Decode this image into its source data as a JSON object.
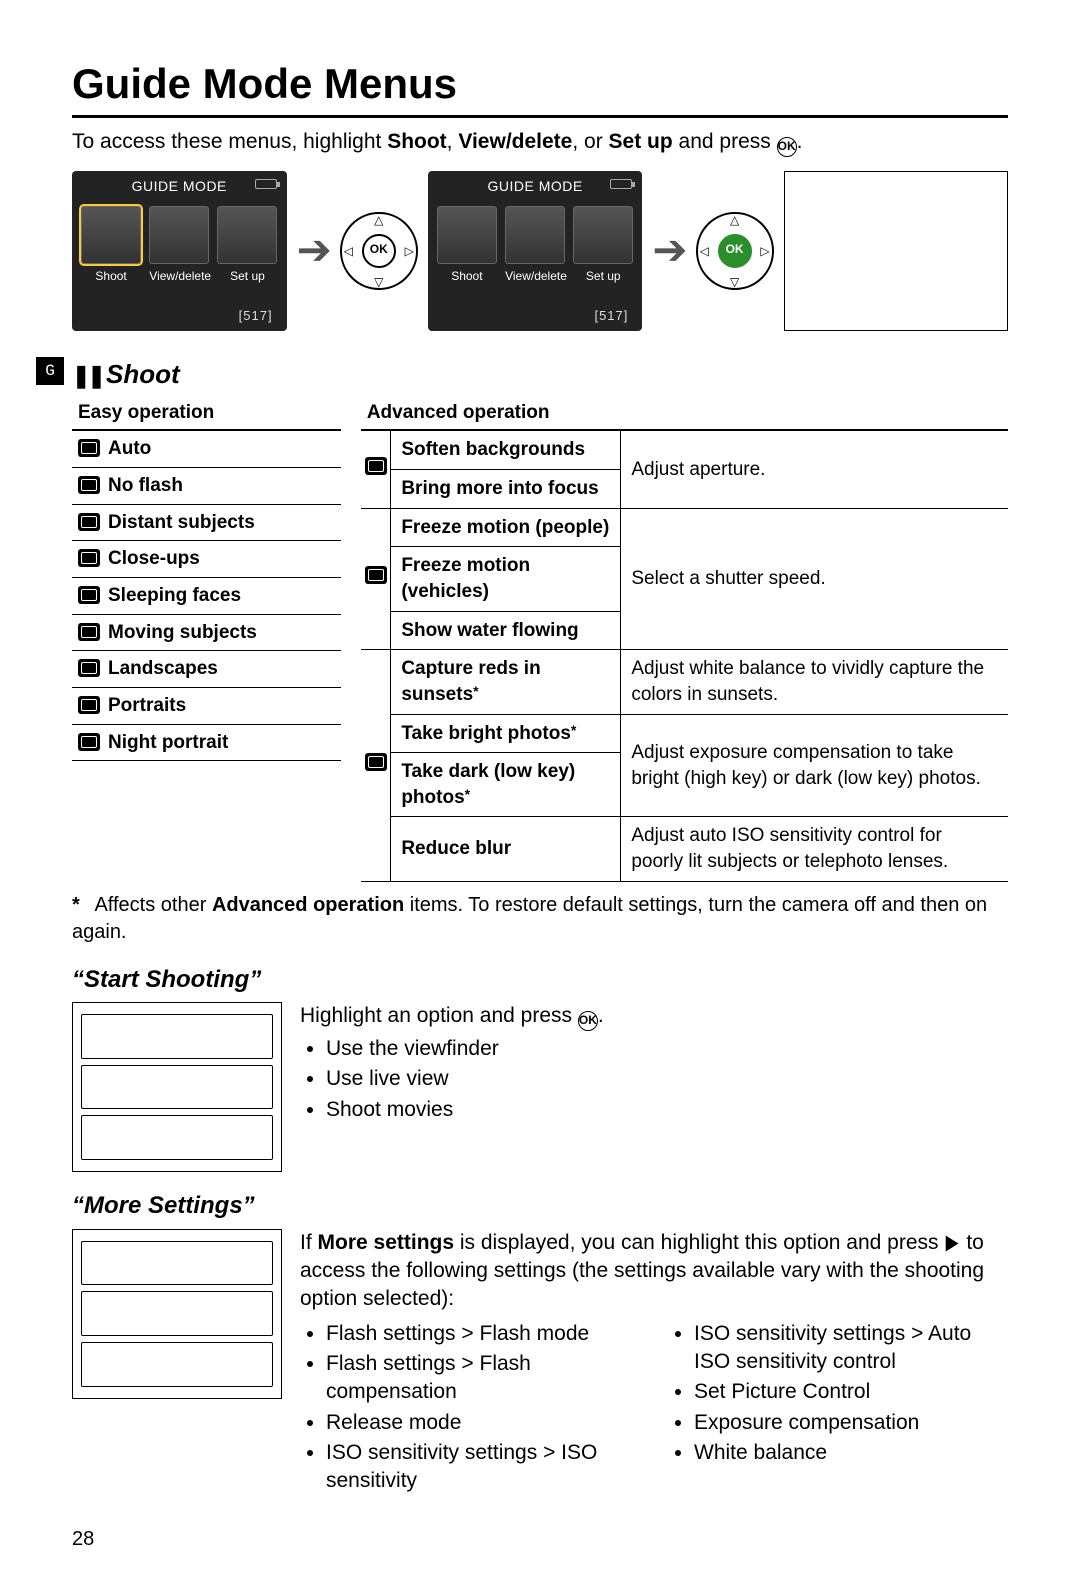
{
  "page_number": "28",
  "title": "Guide Mode Menus",
  "intro": {
    "prefix": "To access these menus, highlight ",
    "b1": "Shoot",
    "c1": ", ",
    "b2": "View/delete",
    "c2": ", or ",
    "b3": "Set up",
    "suffix": " and press ",
    "ok": "OK",
    "end": "."
  },
  "lcd": {
    "title": "GUIDE MODE",
    "tiles": [
      "Shoot",
      "View/delete",
      "Set up"
    ],
    "foot": "[517]"
  },
  "side_tab": "G",
  "shoot_heading": "Shoot",
  "easy": {
    "header": "Easy operation",
    "rows": [
      "Auto",
      "No flash",
      "Distant subjects",
      "Close-ups",
      "Sleeping faces",
      "Moving subjects",
      "Landscapes",
      "Portraits",
      "Night portrait"
    ]
  },
  "adv": {
    "header": "Advanced operation",
    "g1": {
      "r1": "Soften backgrounds",
      "r2": "Bring more into focus",
      "desc": "Adjust aperture."
    },
    "g2": {
      "r1": "Freeze motion (people)",
      "r2": "Freeze motion (vehicles)",
      "r3": "Show water flowing",
      "desc": "Select a shutter speed."
    },
    "g3": {
      "r1": "Capture reds in sunsets",
      "r1desc": "Adjust white balance to vividly capture the colors in sunsets.",
      "r2": "Take bright photos",
      "r3": "Take dark (low key) photos",
      "r23desc": "Adjust exposure compensation to take bright (high key) or dark (low key) photos.",
      "r4": "Reduce blur",
      "r4desc": "Adjust auto ISO sensitivity control for poorly lit subjects or telephoto lenses."
    }
  },
  "footnote": {
    "ast": "*",
    "t1": "Affects other ",
    "b": "Advanced operation",
    "t2": " items.  To restore default settings, turn the camera off and then on again."
  },
  "start": {
    "heading": "“Start Shooting”",
    "lead": "Highlight an option and press ",
    "ok": "OK",
    "end": ".",
    "items": [
      "Use the viewfinder",
      "Use live view",
      "Shoot movies"
    ]
  },
  "more": {
    "heading": "“More Settings”",
    "p1a": "If ",
    "p1b": "More settings",
    "p1c": " is displayed, you can highlight this option and press ",
    "arrow": "▶",
    "p1d": " to access the following settings (the settings available vary with the shooting option selected):",
    "left": [
      "Flash settings > Flash mode",
      "Flash settings > Flash compensation",
      "Release mode",
      "ISO sensitivity settings > ISO sensitivity"
    ],
    "right": [
      "ISO sensitivity settings > Auto ISO sensitivity control",
      "Set Picture Control",
      "Exposure compensation",
      "White balance"
    ]
  }
}
